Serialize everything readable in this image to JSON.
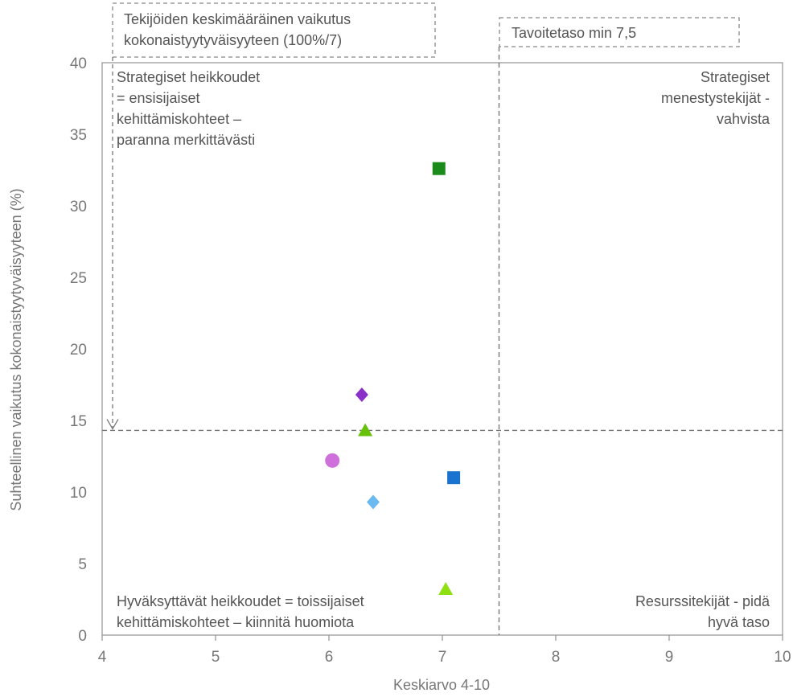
{
  "chart_data": {
    "type": "scatter",
    "xlabel": "Keskiarvo 4-10",
    "ylabel": "Suhteellinen vaikutus kokonaistyytyväisyyteen (%)",
    "xlim": [
      4,
      10
    ],
    "ylim": [
      0,
      40
    ],
    "x_ticks": [
      4,
      5,
      6,
      7,
      8,
      9,
      10
    ],
    "y_ticks": [
      0,
      5,
      10,
      15,
      20,
      25,
      30,
      35,
      40
    ],
    "grid": false,
    "reference_lines": {
      "target_x": 7.5,
      "average_y": 14.3
    },
    "points": [
      {
        "x": 6.97,
        "y": 32.6,
        "marker": "square",
        "color": "#1a8a1a"
      },
      {
        "x": 6.29,
        "y": 16.8,
        "marker": "diamond",
        "color": "#8b2fc9"
      },
      {
        "x": 6.32,
        "y": 14.3,
        "marker": "triangle",
        "color": "#66c20a"
      },
      {
        "x": 6.03,
        "y": 12.2,
        "marker": "circle",
        "color": "#cf6fdc"
      },
      {
        "x": 7.1,
        "y": 11.0,
        "marker": "square",
        "color": "#1b73d0"
      },
      {
        "x": 6.39,
        "y": 9.3,
        "marker": "diamond",
        "color": "#6ab9f0"
      },
      {
        "x": 7.03,
        "y": 3.2,
        "marker": "triangle",
        "color": "#8ee010"
      }
    ]
  },
  "annotations": {
    "avg_box": [
      "Tekijöiden keskimääräinen vaikutus",
      "kokonaistyytyväisyyteen (100%/7)"
    ],
    "target_box": "Tavoitetaso min 7,5",
    "top_left": [
      "Strategiset heikkoudet",
      "= ensisijaiset",
      "kehittämiskohteet –",
      "paranna merkittävästi"
    ],
    "top_right": [
      "Strategiset",
      "menestystekijät -",
      "vahvista"
    ],
    "bottom_left": [
      "Hyväksyttävät heikkoudet = toissijaiset",
      "kehittämiskohteet – kiinnitä huomiota"
    ],
    "bottom_right": [
      "Resurssitekijät - pidä",
      "hyvä taso"
    ]
  }
}
